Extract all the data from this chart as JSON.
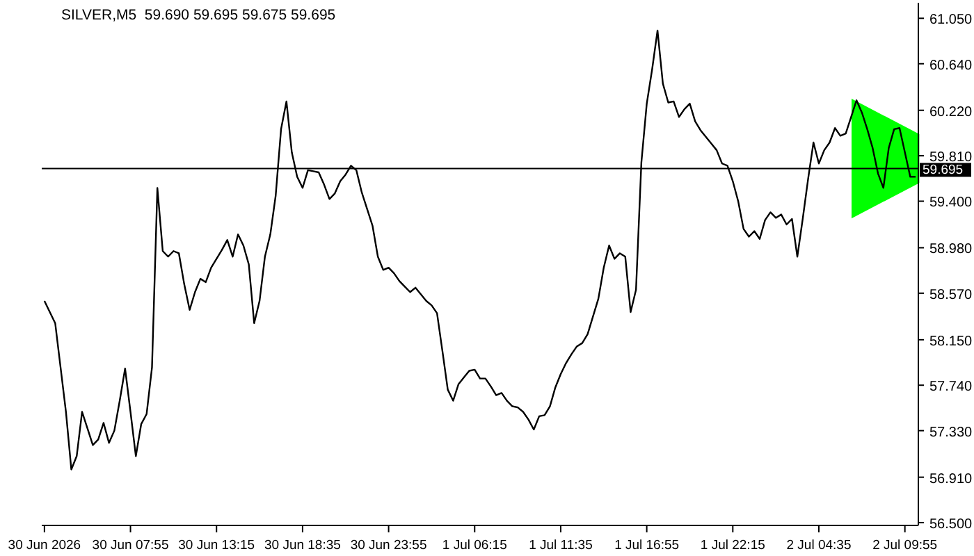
{
  "chart_data": {
    "type": "line",
    "title": "SILVER,M5  59.690 59.695 59.675 59.695",
    "categories": [
      "30 Jun 2026",
      null,
      null,
      null,
      null,
      null,
      null,
      null,
      null,
      null,
      null,
      null,
      null,
      null,
      null,
      null,
      "30 Jun 07:55",
      null,
      null,
      null,
      null,
      null,
      null,
      null,
      null,
      null,
      null,
      null,
      null,
      null,
      null,
      null,
      "30 Jun 13:15",
      null,
      null,
      null,
      null,
      null,
      null,
      null,
      null,
      null,
      null,
      null,
      null,
      null,
      null,
      null,
      "30 Jun 18:35",
      null,
      null,
      null,
      null,
      null,
      null,
      null,
      null,
      null,
      null,
      null,
      null,
      null,
      null,
      null,
      "30 Jun 23:55",
      null,
      null,
      null,
      null,
      null,
      null,
      null,
      null,
      null,
      null,
      null,
      null,
      null,
      null,
      null,
      "1 Jul 06:15",
      null,
      null,
      null,
      null,
      null,
      null,
      null,
      null,
      null,
      null,
      null,
      null,
      null,
      null,
      null,
      "1 Jul 11:35",
      null,
      null,
      null,
      null,
      null,
      null,
      null,
      null,
      null,
      null,
      null,
      null,
      null,
      null,
      null,
      "1 Jul 16:55",
      null,
      null,
      null,
      null,
      null,
      null,
      null,
      null,
      null,
      null,
      null,
      null,
      null,
      null,
      null,
      "1 Jul 22:15",
      null,
      null,
      null,
      null,
      null,
      null,
      null,
      null,
      null,
      null,
      null,
      null,
      null,
      null,
      null,
      "2 Jul 04:35",
      null,
      null,
      null,
      null,
      null,
      null,
      null,
      null,
      null,
      null,
      null,
      null,
      null,
      null,
      null,
      "2 Jul 09:55",
      null,
      null
    ],
    "series": [
      {
        "color": "#000000",
        "values": [
          58.5,
          58.4,
          58.3,
          57.9,
          57.5,
          56.98,
          57.1,
          57.5,
          57.35,
          57.2,
          57.25,
          57.4,
          57.22,
          57.33,
          57.6,
          57.89,
          57.5,
          57.1,
          57.39,
          57.48,
          57.9,
          59.52,
          58.95,
          58.9,
          58.95,
          58.93,
          58.65,
          58.42,
          58.58,
          58.7,
          58.67,
          58.8,
          58.88,
          58.96,
          59.05,
          58.9,
          59.1,
          59.0,
          58.83,
          58.3,
          58.5,
          58.9,
          59.1,
          59.45,
          60.05,
          60.3,
          59.84,
          59.62,
          59.52,
          59.68,
          59.67,
          59.66,
          59.55,
          59.42,
          59.47,
          59.58,
          59.64,
          59.72,
          59.68,
          59.48,
          59.33,
          59.18,
          58.9,
          58.78,
          58.8,
          58.75,
          58.68,
          58.63,
          58.58,
          58.62,
          58.56,
          58.5,
          58.46,
          58.39,
          58.05,
          57.7,
          57.6,
          57.75,
          57.81,
          57.87,
          57.88,
          57.8,
          57.8,
          57.73,
          57.65,
          57.67,
          57.6,
          57.55,
          57.54,
          57.5,
          57.43,
          57.34,
          57.46,
          57.47,
          57.55,
          57.72,
          57.84,
          57.94,
          58.02,
          58.09,
          58.12,
          58.2,
          58.36,
          58.52,
          58.8,
          59.0,
          58.88,
          58.93,
          58.9,
          58.4,
          58.6,
          59.75,
          60.28,
          60.59,
          60.94,
          60.46,
          60.29,
          60.3,
          60.16,
          60.23,
          60.28,
          60.12,
          60.04,
          59.98,
          59.92,
          59.86,
          59.74,
          59.72,
          59.58,
          59.4,
          59.15,
          59.08,
          59.13,
          59.06,
          59.23,
          59.3,
          59.25,
          59.28,
          59.19,
          59.24,
          58.9,
          59.24,
          59.6,
          59.93,
          59.74,
          59.86,
          59.93,
          60.06,
          59.99,
          60.01,
          60.16,
          60.31,
          60.2,
          60.05,
          59.88,
          59.65,
          59.52,
          59.88,
          60.05,
          60.06,
          59.84,
          59.62,
          59.62
        ]
      }
    ],
    "ylim": [
      56.475,
      61.19
    ],
    "yticks": [
      {
        "value": 56.5,
        "label": "56.500"
      },
      {
        "value": 56.91,
        "label": "56.910"
      },
      {
        "value": 57.33,
        "label": "57.330"
      },
      {
        "value": 57.74,
        "label": "57.740"
      },
      {
        "value": 58.15,
        "label": "58.150"
      },
      {
        "value": 58.57,
        "label": "58.570"
      },
      {
        "value": 58.98,
        "label": "58.980"
      },
      {
        "value": 59.4,
        "label": "59.400"
      },
      {
        "value": 59.81,
        "label": "59.810"
      },
      {
        "value": 60.22,
        "label": "60.220"
      },
      {
        "value": 60.64,
        "label": "60.640"
      },
      {
        "value": 61.05,
        "label": "61.050"
      }
    ],
    "ref_lines": [
      {
        "axis": "y",
        "value": 59.695,
        "label": "59.695",
        "color": "#000000"
      }
    ],
    "marker": "none",
    "line_style": "solid"
  }
}
